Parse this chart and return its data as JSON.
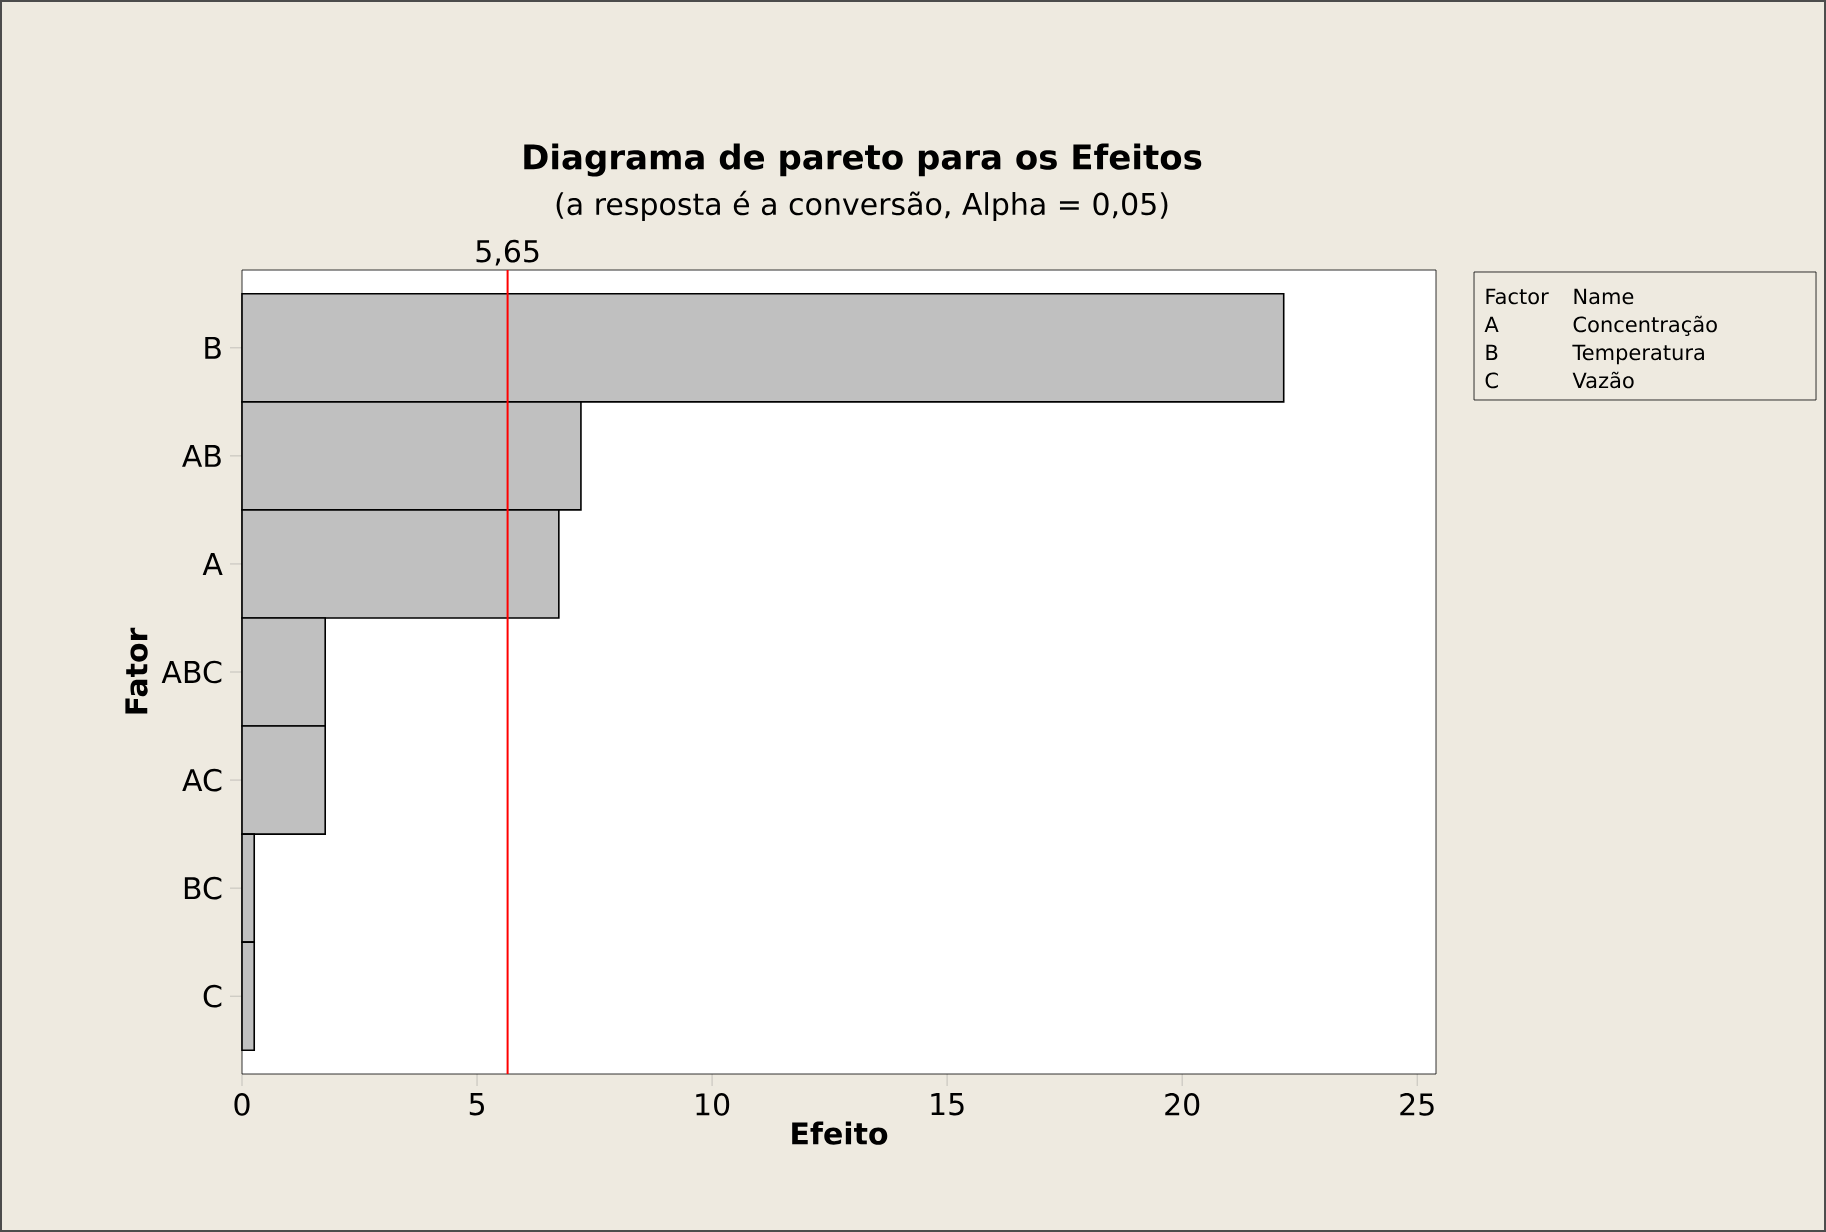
{
  "chart_data": {
    "type": "bar",
    "orientation": "horizontal",
    "title": "Diagrama de pareto para os Efeitos",
    "subtitle": "(a resposta é a conversão, Alpha = 0,05)",
    "xlabel": "Efeito",
    "ylabel": "Fator",
    "categories": [
      "B",
      "AB",
      "A",
      "ABC",
      "AC",
      "BC",
      "C"
    ],
    "values": [
      22.16,
      7.21,
      6.74,
      1.77,
      1.77,
      0.26,
      0.26
    ],
    "color": "#c0c0c0",
    "xlim": [
      0,
      25.4
    ],
    "xticks": [
      0,
      5,
      10,
      15,
      20,
      25
    ],
    "ref_lines": [
      {
        "axis": "x",
        "value": 5.65,
        "label": "5,65",
        "color": "#ff0000"
      }
    ],
    "annotations": [
      "Factor",
      "Name",
      "A",
      "Concentração",
      "B",
      "Temperatura",
      "C",
      "Vazão"
    ],
    "grid": false
  }
}
